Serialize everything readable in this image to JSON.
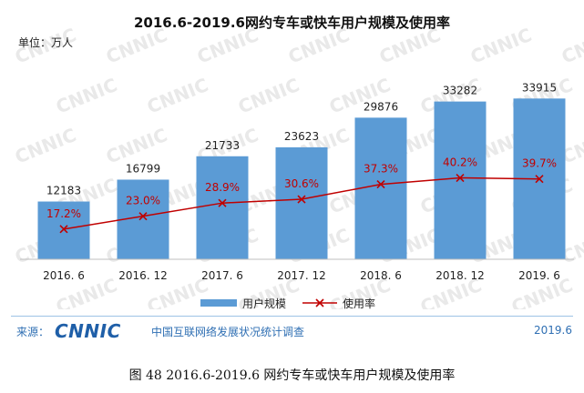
{
  "chart_data": {
    "type": "bar",
    "title": "2016.6-2019.6网约专车或快车用户规模及使用率",
    "unit_label": "单位：万人",
    "categories": [
      "2016. 6",
      "2016. 12",
      "2017. 6",
      "2017. 12",
      "2018. 6",
      "2018. 12",
      "2019. 6"
    ],
    "series": [
      {
        "name": "用户规模",
        "type": "bar",
        "values": [
          12183,
          16799,
          21733,
          23623,
          29876,
          33282,
          33915
        ],
        "labels": [
          "12183",
          "16799",
          "21733",
          "23623",
          "29876",
          "33282",
          "33915"
        ],
        "color": "#5b9bd5"
      },
      {
        "name": "使用率",
        "type": "line",
        "values": [
          17.2,
          23.0,
          28.9,
          30.6,
          37.3,
          40.2,
          39.7
        ],
        "labels": [
          "17.2%",
          "23.0%",
          "28.9%",
          "30.6%",
          "37.3%",
          "40.2%",
          "39.7%"
        ],
        "color": "#c00000"
      }
    ],
    "legend": {
      "position": "bottom"
    },
    "grid": false
  },
  "source": {
    "label": "来源：",
    "logo_text": "CNNIC",
    "org_name": "中国互联网络发展状况统计调查",
    "date": "2019.6"
  },
  "caption": "图  48    2016.6-2019.6 网约专车或快车用户规模及使用率",
  "watermark": "CNNIC"
}
